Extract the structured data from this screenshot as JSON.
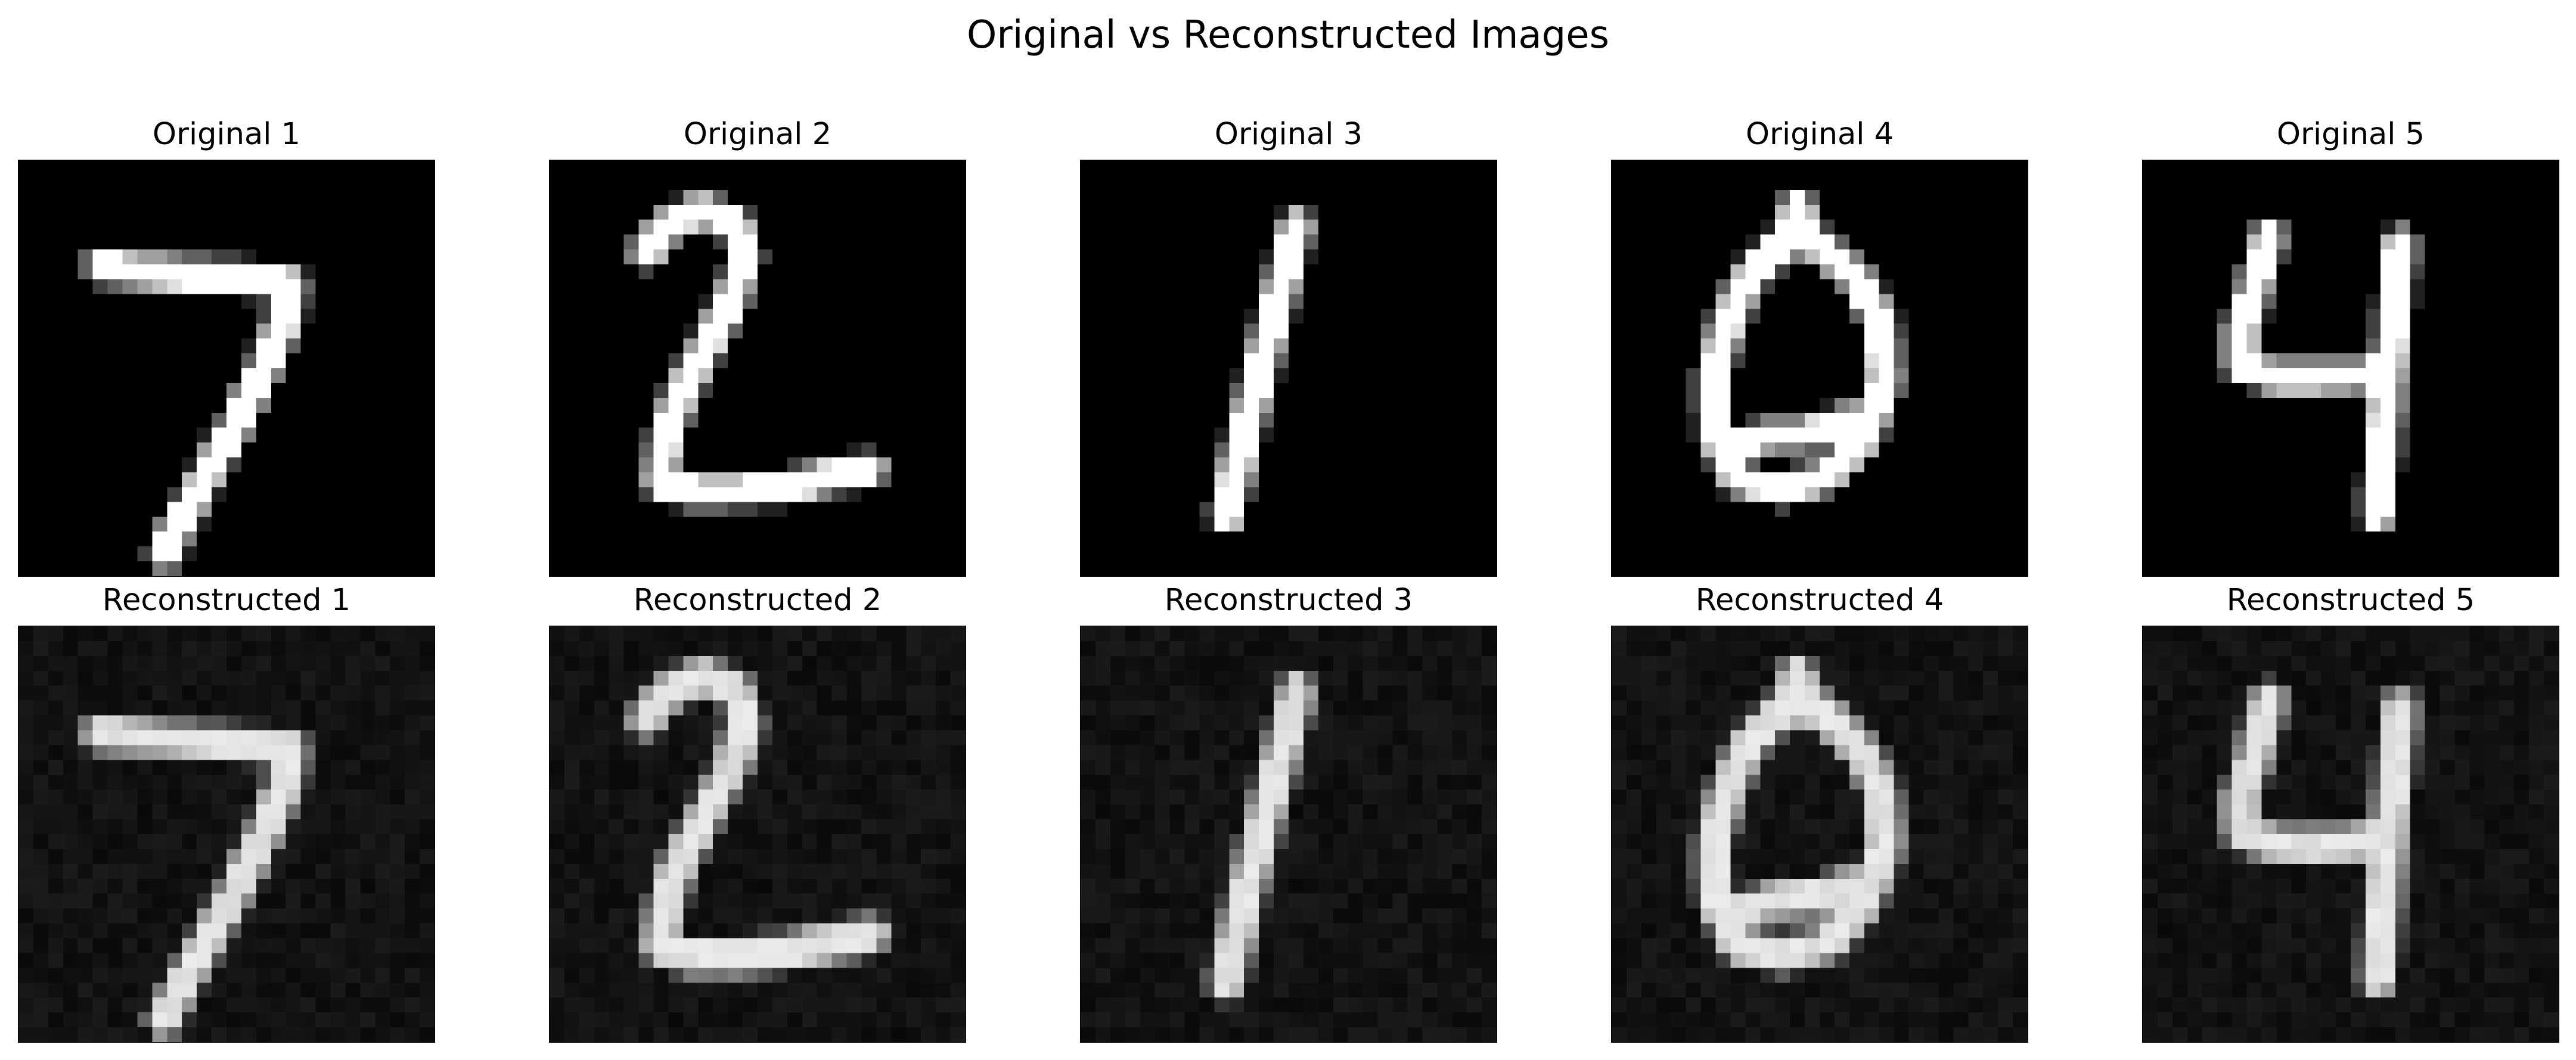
{
  "figure": {
    "title": "Original vs Reconstructed Images",
    "background_color": "#ffffff",
    "colormap": "gray"
  },
  "rows": [
    {
      "row_name": "original",
      "panels": [
        {
          "title": "Original 1",
          "digit": "7"
        },
        {
          "title": "Original 2",
          "digit": "2"
        },
        {
          "title": "Original 3",
          "digit": "1"
        },
        {
          "title": "Original 4",
          "digit": "0"
        },
        {
          "title": "Original 5",
          "digit": "4"
        }
      ]
    },
    {
      "row_name": "reconstructed",
      "panels": [
        {
          "title": "Reconstructed 1",
          "digit": "7"
        },
        {
          "title": "Reconstructed 2",
          "digit": "2"
        },
        {
          "title": "Reconstructed 3",
          "digit": "1"
        },
        {
          "title": "Reconstructed 4",
          "digit": "0"
        },
        {
          "title": "Reconstructed 5",
          "digit": "4"
        }
      ]
    }
  ]
}
